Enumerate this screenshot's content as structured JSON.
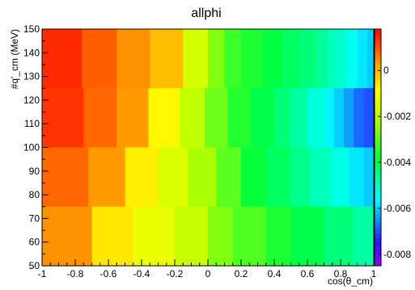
{
  "chart_data": {
    "type": "heatmap",
    "title": "allphi",
    "xlabel": "cos(θ_cm)",
    "ylabel": "#q'_cm (MeV)",
    "xlim": [
      -1,
      1
    ],
    "ylim": [
      50,
      150
    ],
    "zlim": [
      -0.0085,
      0.0018
    ],
    "x_ticks": [
      -1,
      -0.8,
      -0.6,
      -0.4,
      -0.2,
      0,
      0.2,
      0.4,
      0.6,
      0.8,
      1
    ],
    "y_ticks": [
      50,
      60,
      70,
      80,
      90,
      100,
      110,
      120,
      130,
      140,
      150
    ],
    "z_ticks": [
      0,
      -0.002,
      -0.004,
      -0.006,
      -0.008
    ],
    "rows": [
      {
        "y_range": [
          125,
          150
        ],
        "x_edges": [
          -1,
          -0.76,
          -0.55,
          -0.35,
          -0.15,
          0.0,
          0.1,
          0.2,
          0.33,
          0.45,
          0.55,
          0.65,
          0.72,
          0.78,
          0.84,
          0.9,
          0.96,
          1
        ],
        "values": [
          0.0014,
          0.0009,
          0.0004,
          -0.0001,
          -0.0016,
          -0.0026,
          -0.0033,
          -0.0036,
          -0.0039,
          -0.0042,
          -0.0044,
          -0.0047,
          -0.005,
          -0.0052,
          -0.0055,
          -0.0058,
          -0.006
        ]
      },
      {
        "y_range": [
          100,
          125
        ],
        "x_edges": [
          -1,
          -0.75,
          -0.55,
          -0.36,
          -0.17,
          -0.02,
          0.12,
          0.26,
          0.4,
          0.5,
          0.6,
          0.7,
          0.76,
          0.82,
          0.88,
          0.94,
          1
        ],
        "values": [
          0.0013,
          0.0008,
          0.0003,
          -0.0008,
          -0.0019,
          -0.0028,
          -0.0035,
          -0.004,
          -0.0044,
          -0.0048,
          -0.0053,
          -0.0057,
          -0.006,
          -0.0064,
          -0.0068,
          -0.007
        ]
      },
      {
        "y_range": [
          75,
          100
        ],
        "x_edges": [
          -1,
          -0.72,
          -0.5,
          -0.3,
          -0.12,
          0.05,
          0.2,
          0.35,
          0.5,
          0.62,
          0.74,
          0.85,
          0.94,
          1
        ],
        "values": [
          0.0008,
          0.0003,
          -0.0007,
          -0.0015,
          -0.0022,
          -0.003,
          -0.0038,
          -0.0042,
          -0.0046,
          -0.005,
          -0.0054,
          -0.0058,
          -0.006
        ]
      },
      {
        "y_range": [
          50,
          75
        ],
        "x_edges": [
          -1,
          -0.7,
          -0.45,
          -0.2,
          0.0,
          0.15,
          0.35,
          0.5,
          0.7,
          0.87,
          1
        ],
        "values": [
          0.0004,
          -0.0006,
          -0.0012,
          -0.0018,
          -0.0026,
          -0.0031,
          -0.0036,
          -0.004,
          -0.0044,
          -0.0048
        ]
      }
    ]
  }
}
